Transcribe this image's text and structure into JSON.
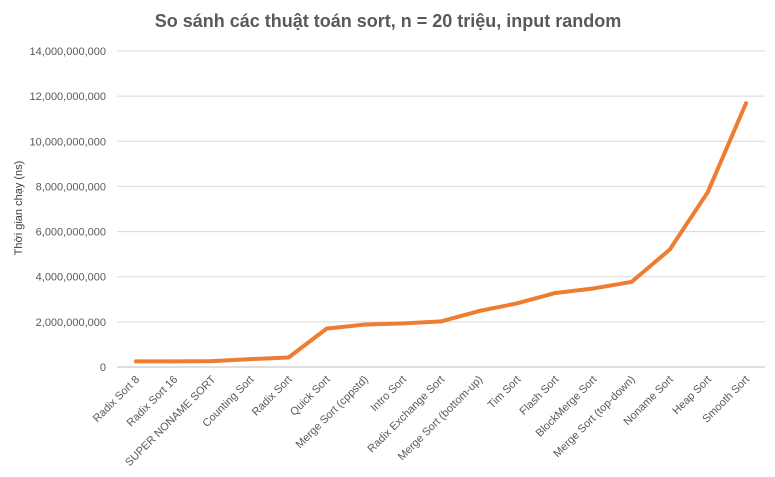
{
  "chart_data": {
    "type": "line",
    "title": "So sánh các thuật toán sort, n = 20 triệu, input random",
    "xlabel": "",
    "ylabel": "Thời gian chạy (ns)",
    "ylim": [
      0,
      14000000000
    ],
    "yticks": [
      {
        "value": 0,
        "label": "0"
      },
      {
        "value": 2000000000,
        "label": "2,000,000,000"
      },
      {
        "value": 4000000000,
        "label": "4,000,000,000"
      },
      {
        "value": 6000000000,
        "label": "6,000,000,000"
      },
      {
        "value": 8000000000,
        "label": "8,000,000,000"
      },
      {
        "value": 10000000000,
        "label": "10,000,000,000"
      },
      {
        "value": 12000000000,
        "label": "12,000,000,000"
      },
      {
        "value": 14000000000,
        "label": "14,000,000,000"
      }
    ],
    "grid": true,
    "legend": "none",
    "categories": [
      "Radix Sort 8",
      "Radix Sort 16",
      "SUPER NONAME SORT",
      "Counting Sort",
      "Radix Sort",
      "Quick Sort",
      "Merge Sort (cppstd)",
      "Intro Sort",
      "Radix Exchange Sort",
      "Merge Sort (bottom-up)",
      "Tim Sort",
      "Flash Sort",
      "BlockMerge Sort",
      "Merge Sort (top-down)",
      "Noname Sort",
      "Heap Sort",
      "Smooth Sort"
    ],
    "series": [
      {
        "color": "#ed7d31",
        "values": [
          250000000,
          250000000,
          260000000,
          350000000,
          420000000,
          1700000000,
          1880000000,
          1930000000,
          2020000000,
          2480000000,
          2820000000,
          3280000000,
          3480000000,
          3770000000,
          5200000000,
          7750000000,
          11680000000
        ]
      }
    ]
  }
}
